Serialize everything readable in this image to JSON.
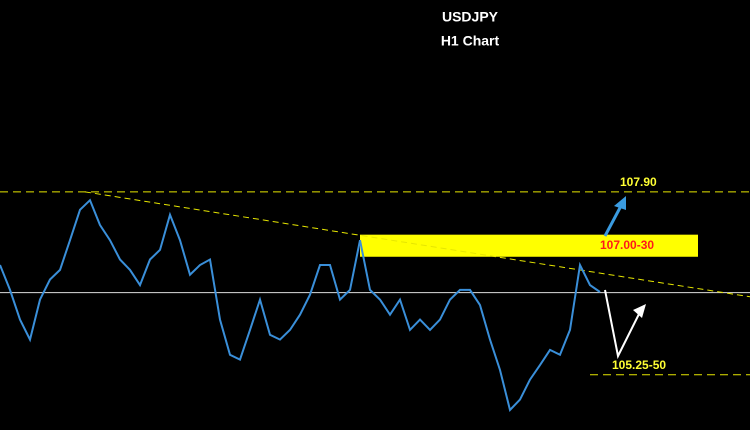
{
  "chart_data": {
    "type": "line",
    "title": "USDJPY",
    "subtitle": "H1 Chart",
    "ylim": [
      104.45,
      110.68
    ],
    "color": "#3a8fd9",
    "values": [
      106.84,
      106.48,
      106.05,
      105.76,
      106.34,
      106.63,
      106.77,
      107.2,
      107.64,
      107.78,
      107.42,
      107.2,
      106.92,
      106.77,
      106.55,
      106.92,
      107.06,
      107.57,
      107.2,
      106.7,
      106.84,
      106.92,
      106.05,
      105.54,
      105.47,
      105.9,
      106.34,
      105.83,
      105.76,
      105.9,
      106.12,
      106.41,
      106.84,
      106.84,
      106.34,
      106.48,
      107.2,
      106.48,
      106.34,
      106.12,
      106.34,
      105.9,
      106.05,
      105.9,
      106.05,
      106.34,
      106.48,
      106.48,
      106.26,
      105.76,
      105.32,
      104.74,
      104.89,
      105.18,
      105.39,
      105.61,
      105.54,
      105.9,
      106.84,
      106.55,
      106.45
    ],
    "levels": [
      {
        "value": 107.9,
        "label": "107.90"
      },
      {
        "value": 105.25,
        "label": "105.25-50"
      }
    ],
    "zone": {
      "low": 106.96,
      "high": 107.28,
      "label": "107.00-30"
    },
    "trendline": [
      107.9,
      106.38
    ],
    "reference_line": 106.44
  }
}
